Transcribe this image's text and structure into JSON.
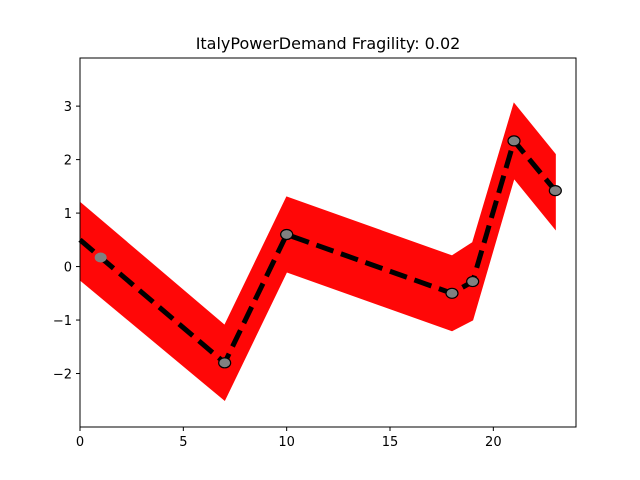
{
  "chart_data": {
    "type": "line",
    "title": "ItalyPowerDemand Fragility: 0.02",
    "xlabel": "",
    "ylabel": "",
    "xlim": [
      0,
      24
    ],
    "ylim": [
      -3,
      3.9
    ],
    "x_ticks": [
      0,
      5,
      10,
      15,
      20
    ],
    "y_ticks": [
      -2,
      -1,
      0,
      1,
      2,
      3
    ],
    "grid": false,
    "legend": "none",
    "band": {
      "color": "#ff0000",
      "x": [
        0,
        7,
        10,
        18,
        19,
        21,
        23
      ],
      "upper": [
        1.2,
        -1.1,
        1.3,
        0.2,
        0.45,
        3.05,
        2.1
      ],
      "lower": [
        -0.25,
        -2.5,
        -0.1,
        -1.2,
        -1.0,
        1.65,
        0.7
      ]
    },
    "series": [
      {
        "color": "#000000",
        "style": "dashed",
        "x": [
          0,
          7,
          10,
          18,
          19,
          21,
          23
        ],
        "y": [
          0.5,
          -1.8,
          0.6,
          -0.5,
          -0.28,
          2.35,
          1.42
        ]
      }
    ],
    "markers": [
      {
        "x": 1,
        "y": 0.17,
        "edge": "none"
      },
      {
        "x": 7,
        "y": -1.8,
        "edge": "black"
      },
      {
        "x": 10,
        "y": 0.6,
        "edge": "black"
      },
      {
        "x": 18,
        "y": -0.5,
        "edge": "black"
      },
      {
        "x": 19,
        "y": -0.28,
        "edge": "black"
      },
      {
        "x": 21,
        "y": 2.35,
        "edge": "black"
      },
      {
        "x": 23,
        "y": 1.42,
        "edge": "black"
      }
    ],
    "marker_color": "#808080"
  }
}
